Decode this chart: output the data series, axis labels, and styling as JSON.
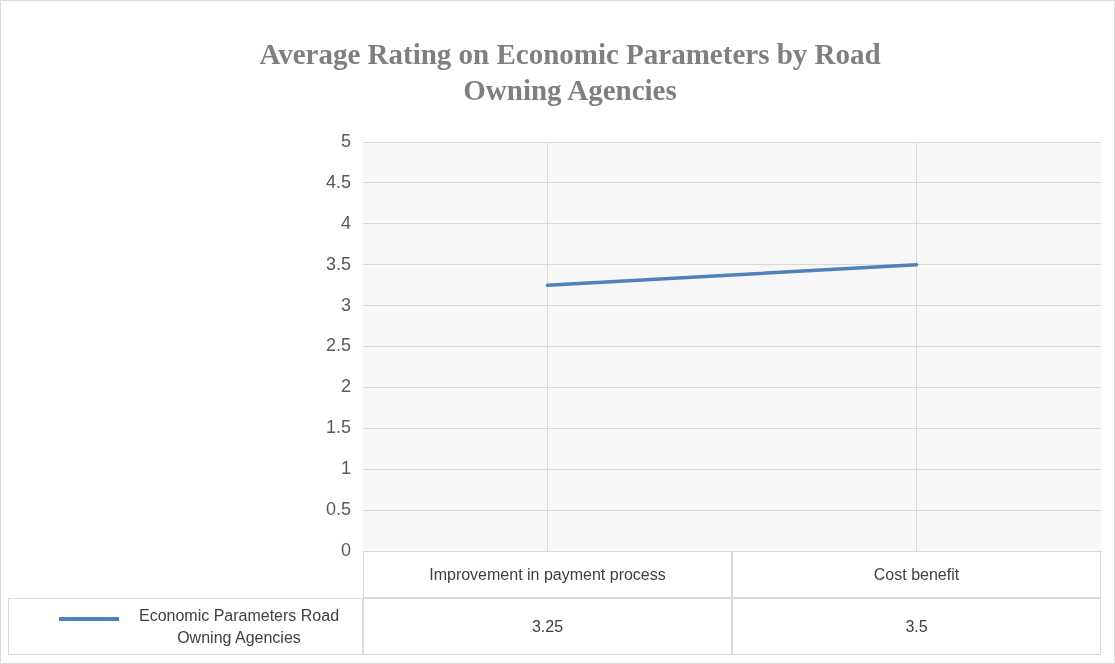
{
  "chart_data": {
    "type": "line",
    "title": "Average Rating on Economic Parameters by Road Owning Agencies",
    "categories": [
      "Improvement in payment process",
      "Cost benefit"
    ],
    "series": [
      {
        "name": "Economic Parameters Road Owning Agencies",
        "color": "#4f81bd",
        "values": [
          3.25,
          3.5
        ]
      }
    ],
    "ylim": [
      0,
      5
    ],
    "yticks": [
      0,
      0.5,
      1,
      1.5,
      2,
      2.5,
      3,
      3.5,
      4,
      4.5,
      5
    ],
    "grid": true,
    "legend": "bottom",
    "data_labels": true,
    "marker": "none"
  }
}
